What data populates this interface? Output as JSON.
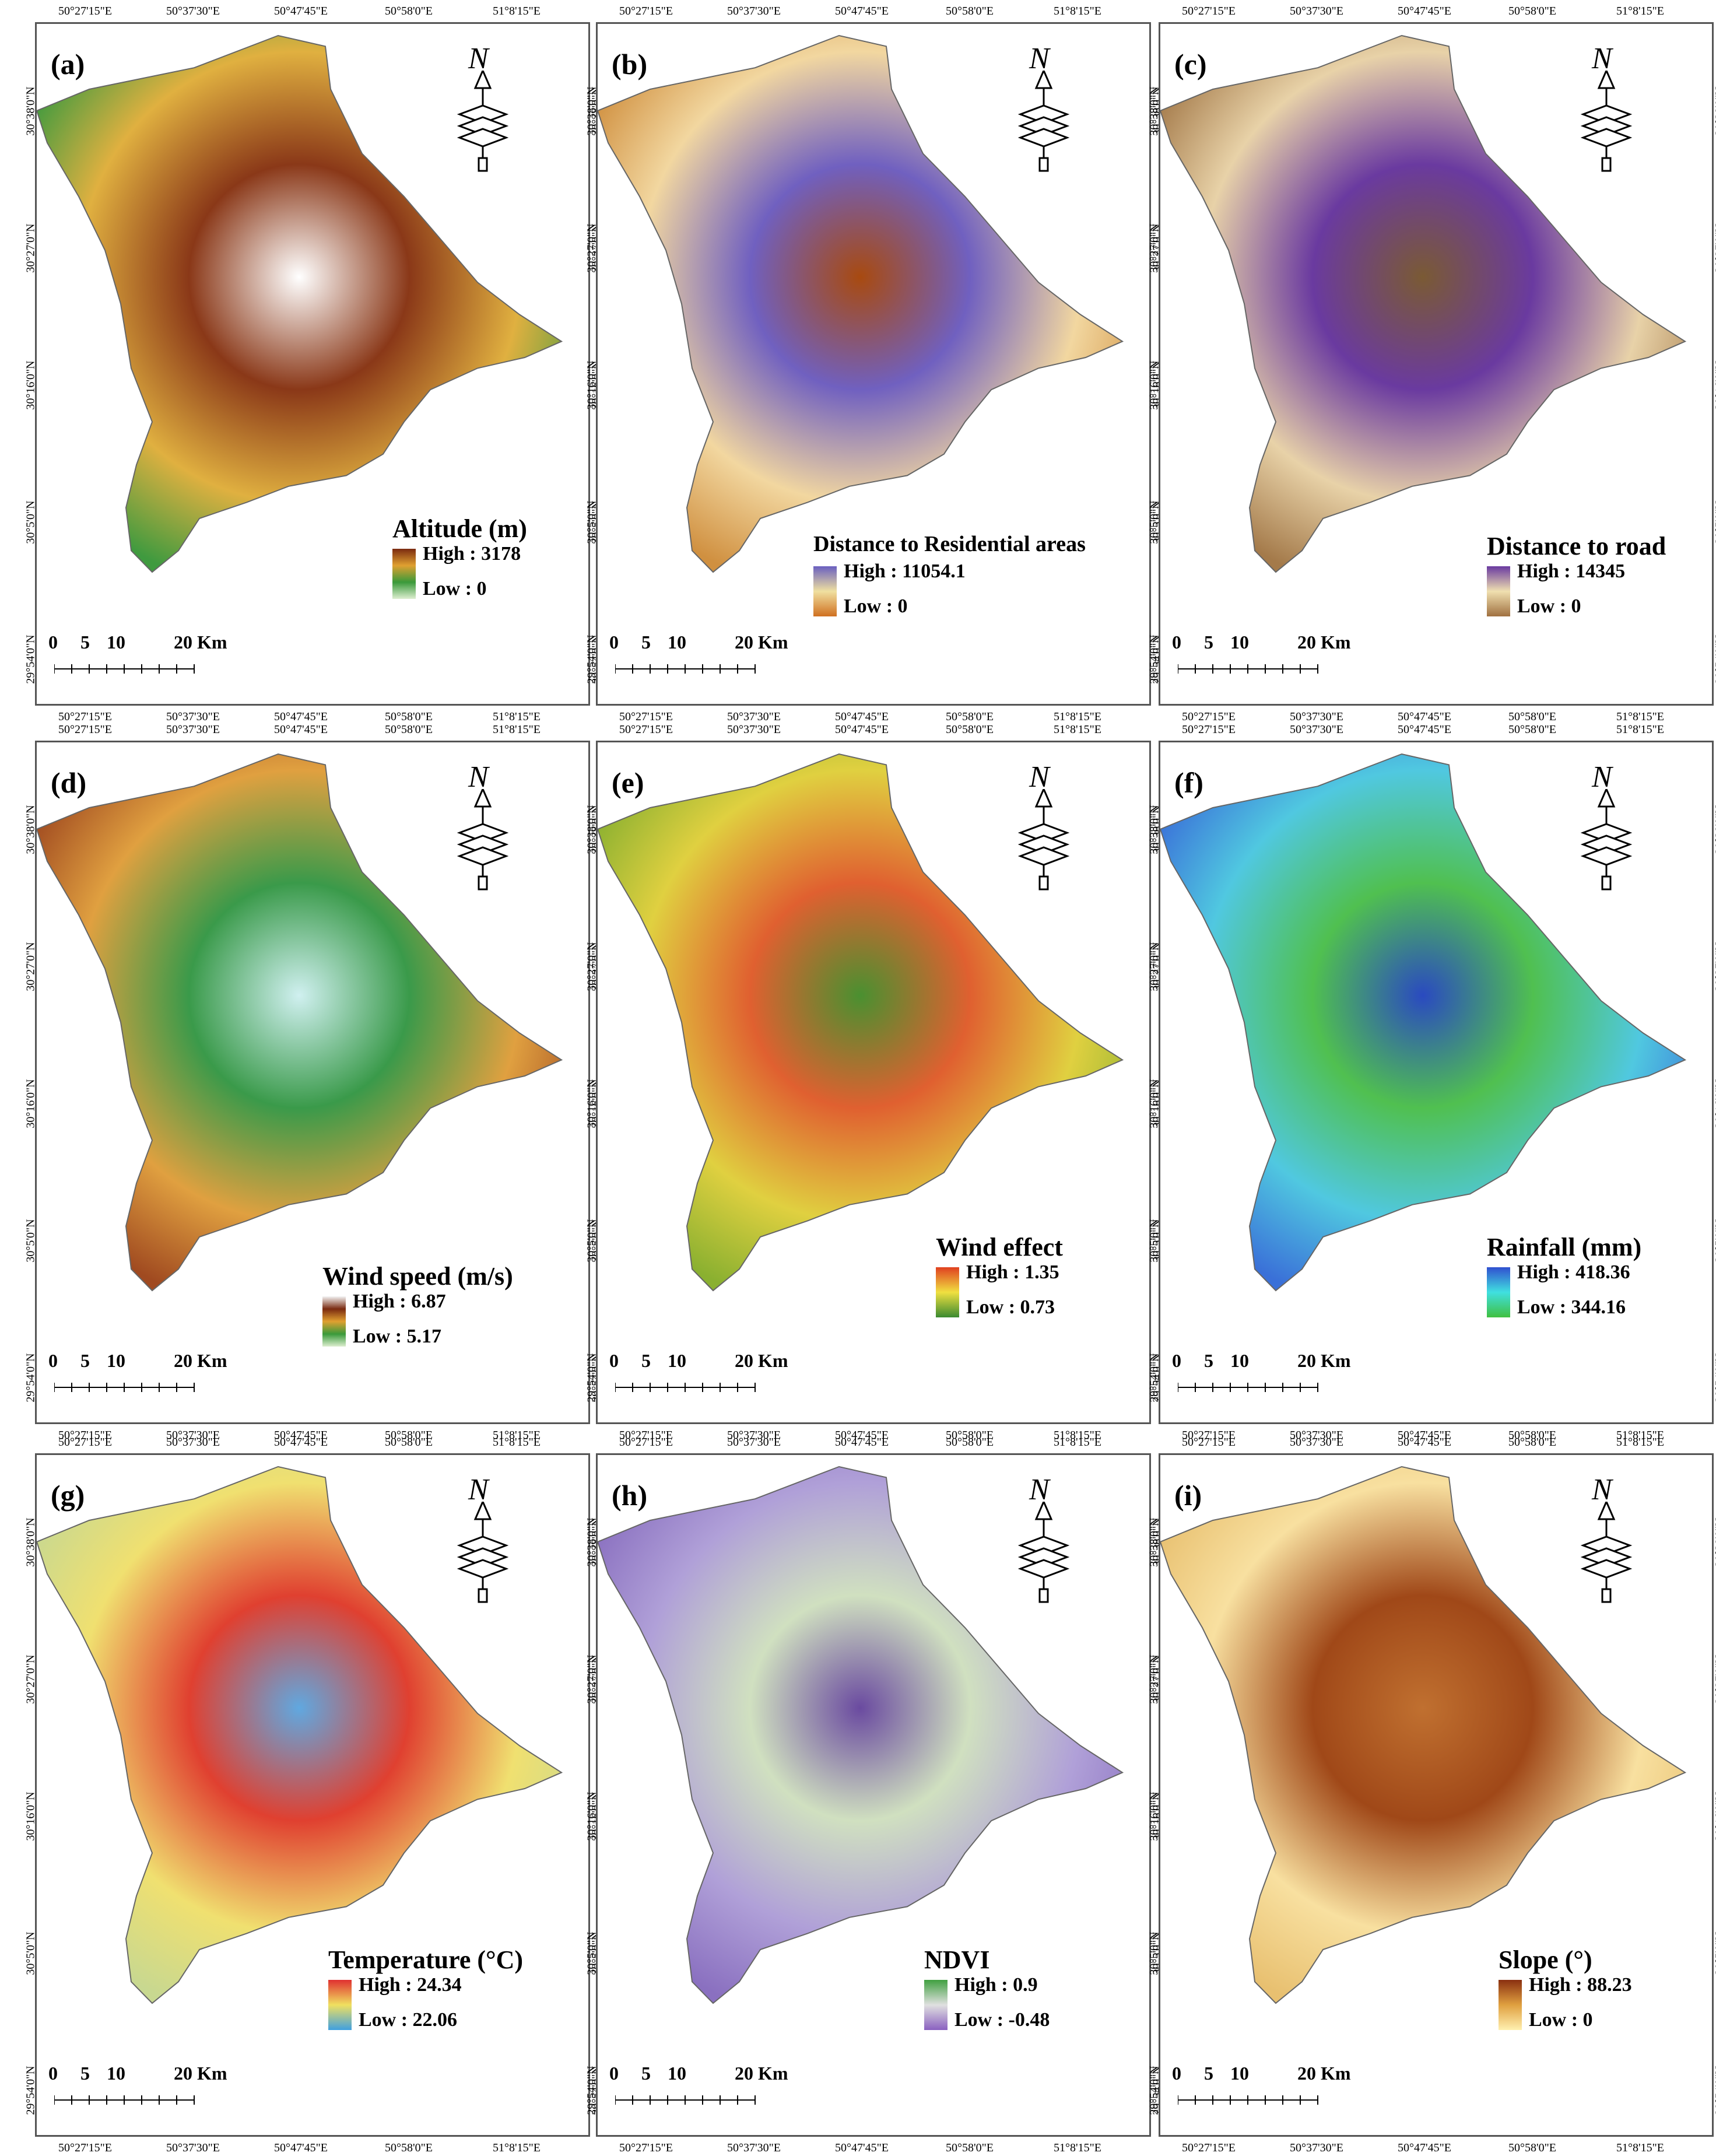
{
  "lon_ticks": [
    "50°27'15\"E",
    "50°37'30\"E",
    "50°47'45\"E",
    "50°58'0\"E",
    "51°8'15\"E"
  ],
  "lat_ticks": [
    "30°38'0\"N",
    "30°27'0\"N",
    "30°16'0\"N",
    "30°5'0\"N",
    "29°54'0\"N"
  ],
  "north_label": "N",
  "scale": {
    "l0": "0",
    "l5": "5",
    "l10": "10",
    "l20": "20 Km"
  },
  "panels": [
    {
      "label": "(a)",
      "title": "Altitude (m)",
      "high": "High : 3178",
      "low": "Low : 0",
      "colors": [
        "#7a2a10",
        "#e0a030",
        "#3a9a3a",
        "#ddeed0"
      ],
      "fill": [
        "#3f9a3f",
        "#e0b040",
        "#8a3818",
        "#ffffff"
      ]
    },
    {
      "label": "(b)",
      "title": "Distance to Residential areas",
      "high": "High : 11054.1",
      "low": "Low : 0",
      "colors": [
        "#6a60c0",
        "#f0e0a0",
        "#d07020"
      ],
      "fill": [
        "#d09040",
        "#f2d7a0",
        "#7060c0",
        "#a84a10"
      ]
    },
    {
      "label": "(c)",
      "title": "Distance to road",
      "high": "High : 14345",
      "low": "Low : 0",
      "colors": [
        "#6a3aa0",
        "#f0e0b0",
        "#a07040"
      ],
      "fill": [
        "#a47a4a",
        "#e8d2a8",
        "#6a3aa0",
        "#7a5a34"
      ]
    },
    {
      "label": "(d)",
      "title": "Wind speed (m/s)",
      "high": "High : 6.87",
      "low": "Low : 5.17",
      "colors": [
        "#f2f2f2",
        "#7a2a10",
        "#e0a030",
        "#3a9a3a",
        "#ddeed0"
      ],
      "fill": [
        "#a04a20",
        "#e0a040",
        "#3a9a4a",
        "#d0f0f0"
      ]
    },
    {
      "label": "(e)",
      "title": "Wind effect",
      "high": "High : 1.35",
      "low": "Low : 0.73",
      "colors": [
        "#e04020",
        "#f0e040",
        "#3a8a30"
      ],
      "fill": [
        "#8ab030",
        "#e0d040",
        "#e06030",
        "#4a9030"
      ]
    },
    {
      "label": "(f)",
      "title": "Rainfall (mm)",
      "high": "High : 418.36",
      "low": "Low : 344.16",
      "colors": [
        "#3050d0",
        "#40e0e0",
        "#40c040"
      ],
      "fill": [
        "#3a70d8",
        "#50c8e0",
        "#50c050",
        "#2a4ac0"
      ]
    },
    {
      "label": "(g)",
      "title": "Temperature (°C)",
      "high": "High : 24.34",
      "low": "Low : 22.06",
      "colors": [
        "#e03030",
        "#f0e060",
        "#40a0e0"
      ],
      "fill": [
        "#c8d890",
        "#f0e070",
        "#e04030",
        "#60a8e0"
      ]
    },
    {
      "label": "(h)",
      "title": "NDVI",
      "high": "High : 0.9",
      "low": "Low : -0.48",
      "colors": [
        "#40a040",
        "#e0e0e0",
        "#8a60c0"
      ],
      "fill": [
        "#8a70c0",
        "#b0a0d8",
        "#d0e0c0",
        "#6a4aa0"
      ]
    },
    {
      "label": "(i)",
      "title": "Slope (°)",
      "high": "High : 88.23",
      "low": "Low : 0",
      "colors": [
        "#8a3010",
        "#e0a040",
        "#fff0b0"
      ],
      "fill": [
        "#e8c070",
        "#f8e0a0",
        "#a04818",
        "#c07030"
      ]
    }
  ]
}
